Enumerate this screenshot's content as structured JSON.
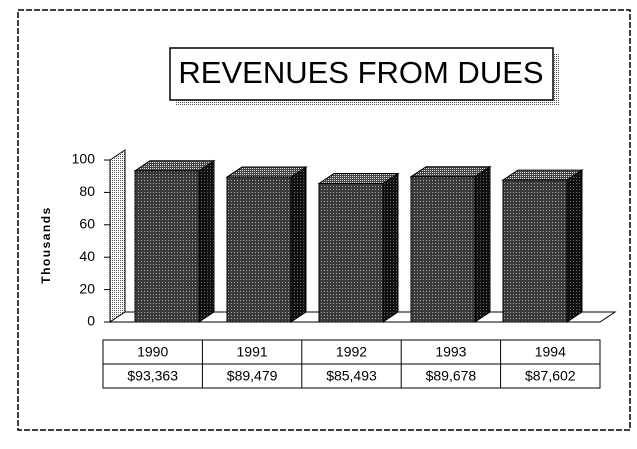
{
  "chart_data": {
    "type": "bar3d",
    "title": "REVENUES FROM DUES",
    "y_label": "Thousands",
    "categories": [
      "1990",
      "1991",
      "1992",
      "1993",
      "1994"
    ],
    "values": [
      93.363,
      89.479,
      85.493,
      89.678,
      87.602
    ],
    "value_labels": [
      "$93,363",
      "$89,479",
      "$85,493",
      "$89,678",
      "$87,602"
    ],
    "color": "#2a2a2a",
    "ylim": [
      0,
      100
    ],
    "yticks": [
      0,
      20,
      40,
      60,
      80,
      100
    ]
  }
}
